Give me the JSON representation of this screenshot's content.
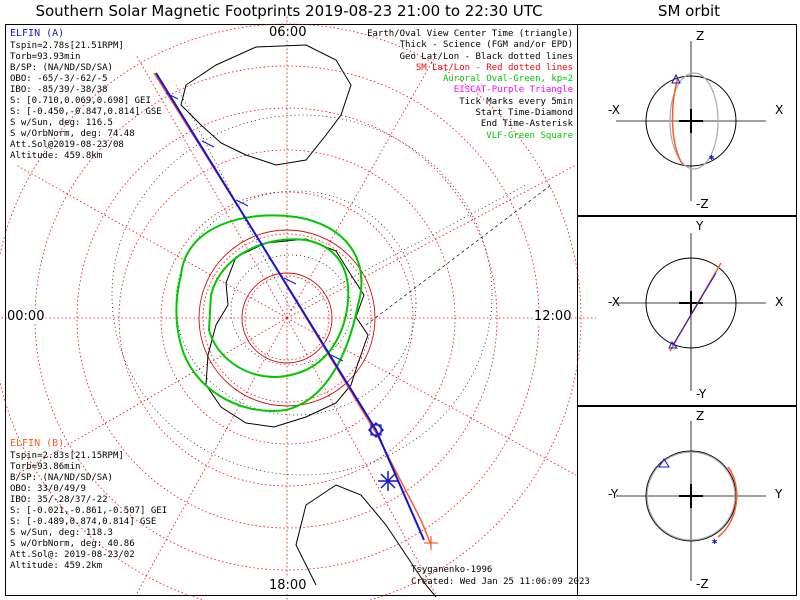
{
  "title": "Southern Solar Magnetic Footprints 2019-08-23 21:00 to 22:30 UTC",
  "orbit_title": "SM orbit",
  "time_labels": {
    "top": "06:00",
    "left": "00:00",
    "right": "12:00",
    "bottom": "18:00"
  },
  "elfin_a": {
    "name": "ELFIN (A)",
    "color": "#1414d2",
    "lines": [
      "Tspin=2.78s[21.51RPM]",
      "Torb=93.93min",
      "B/SP: (NA/ND/SD/SA)",
      "OBO: -65/-3/-62/-5",
      "IBO: -85/39/-38/38",
      "S: [0.710,0.069,0.698] GEI",
      "S: [-0.450,-0.847,0.814] GSE",
      "S w/Sun, deg: 116.5",
      "S w/OrbNorm, deg: 74.48",
      "Att.Sol@2019-08-23/08",
      "Altitude: 459.8km"
    ]
  },
  "elfin_b": {
    "name": "ELFIN (B)",
    "color": "#ff5a28",
    "lines": [
      "Tspin=2.83s[21.15RPM]",
      "Torb=93.86min",
      "B/SP: (NA/ND/SD/SA)",
      "OBO: 33/0/49/9",
      "IBO: 35/-28/37/-22",
      "S: [-0.021,-0.861,-0.507] GEI",
      "S: [-0.489,0.874,0.814] GSE",
      "S w/Sun, deg: 118.3",
      "S w/OrbNorm, deg: 40.86",
      "Att.Sol@: 2019-08-23/02",
      "Altitude: 459.2km"
    ]
  },
  "legend": [
    {
      "text": "Earth/Oval View Center Time (triangle)",
      "color": "#000000"
    },
    {
      "text": "Thick - Science (FGM and/or EPD)",
      "color": "#000000"
    },
    {
      "text": "Geo Lat/Lon - Black dotted lines",
      "color": "#000000"
    },
    {
      "text": "SM Lat/Lon - Red dotted lines",
      "color": "#ff0000"
    },
    {
      "text": "Auroral Oval-Green, kp=2",
      "color": "#00c800"
    },
    {
      "text": "EISCAT-Purple Triangle",
      "color": "#ff00ff"
    },
    {
      "text": "Tick Marks every 5min",
      "color": "#000000"
    },
    {
      "text": "Start Time-Diamond",
      "color": "#000000"
    },
    {
      "text": "End Time-Asterisk",
      "color": "#000000"
    },
    {
      "text": "VLF-Green Square",
      "color": "#00c800"
    }
  ],
  "credit": "Tsyganenko-1996",
  "created": "Created: Wed Jan 25 11:06:09 2023",
  "orbit_panels": [
    {
      "top": "Z",
      "bottom": "-Z",
      "left": "-X",
      "right": "X"
    },
    {
      "top": "Y",
      "bottom": "-Y",
      "left": "-X",
      "right": "X"
    },
    {
      "top": "Z",
      "bottom": "-Z",
      "left": "-Y",
      "right": "Y"
    }
  ],
  "colors": {
    "sm_grid": "#ff0000",
    "oval": "#00c800",
    "geo": "#000000"
  }
}
